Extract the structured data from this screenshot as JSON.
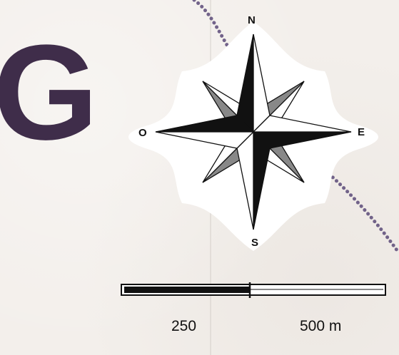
{
  "map": {
    "partial_place_letter": "G",
    "compass": {
      "north": "N",
      "south": "S",
      "west": "O",
      "east": "E"
    },
    "scale": {
      "mid_label": "250",
      "end_label": "500 m"
    },
    "colors": {
      "paper": "#f3efeb",
      "boundary": "#5a4a78",
      "letter": "#3f2d4a",
      "rose_dark": "#111111",
      "rose_mid": "#888888",
      "halo": "#ffffff"
    }
  }
}
